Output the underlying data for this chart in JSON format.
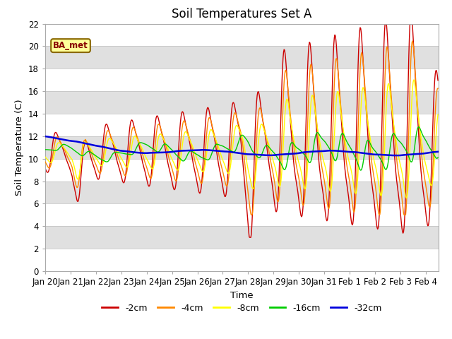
{
  "title": "Soil Temperatures Set A",
  "xlabel": "Time",
  "ylabel": "Soil Temperature (C)",
  "ylim": [
    0,
    22
  ],
  "series_labels": [
    "-2cm",
    "-4cm",
    "-8cm",
    "-16cm",
    "-32cm"
  ],
  "series_colors": [
    "#cc0000",
    "#ff8800",
    "#ffff00",
    "#00cc00",
    "#0000dd"
  ],
  "series_linewidths": [
    1.0,
    1.0,
    1.0,
    1.0,
    1.8
  ],
  "background_color": "#ffffff",
  "plot_bg_color": "#e0e0e0",
  "annotation_text": "BA_met",
  "annotation_bg": "#ffff99",
  "annotation_border": "#886600",
  "title_fontsize": 12,
  "axis_fontsize": 8.5,
  "figsize": [
    6.4,
    4.8
  ],
  "dpi": 100,
  "band_colors": [
    "#ffffff",
    "#d8d8d8"
  ],
  "band_step": 2
}
